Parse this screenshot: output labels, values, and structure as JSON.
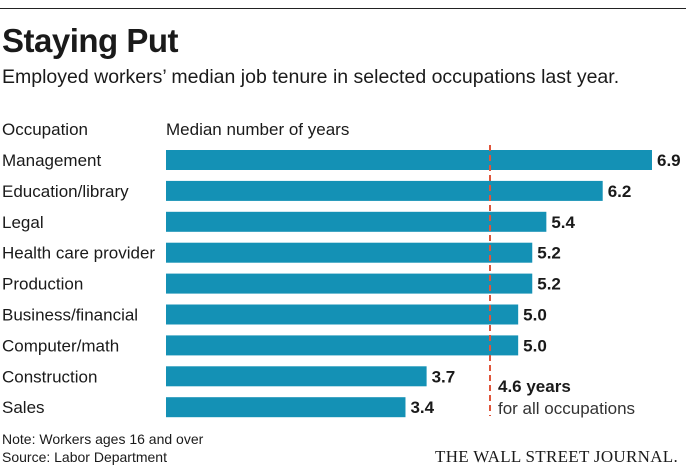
{
  "title": "Staying Put",
  "subtitle": "Employed workers’ median job tenure in selected occupations last year.",
  "column_headers": {
    "occupation": "Occupation",
    "value": "Median number of years"
  },
  "chart_data": {
    "type": "bar",
    "orientation": "horizontal",
    "categories": [
      "Management",
      "Education/library",
      "Legal",
      "Health care provider",
      "Production",
      "Business/financial",
      "Computer/math",
      "Construction",
      "Sales"
    ],
    "values": [
      6.9,
      6.2,
      5.4,
      5.2,
      5.2,
      5.0,
      5.0,
      3.7,
      3.4
    ],
    "value_labels": [
      "6.9",
      "6.2",
      "5.4",
      "5.2",
      "5.2",
      "5.0",
      "5.0",
      "3.7",
      "3.4"
    ],
    "xlim": [
      0,
      6.9
    ],
    "reference_line": {
      "value": 4.6,
      "label_value": "4.6 years",
      "label_text": "for all occupations",
      "color": "#e0553a"
    },
    "bar_color": "#1491b5",
    "grid": false,
    "legend": "none"
  },
  "notes": [
    "Note: Workers ages 16 and over",
    "Source: Labor Department"
  ],
  "credit": "THE WALL STREET JOURNAL."
}
